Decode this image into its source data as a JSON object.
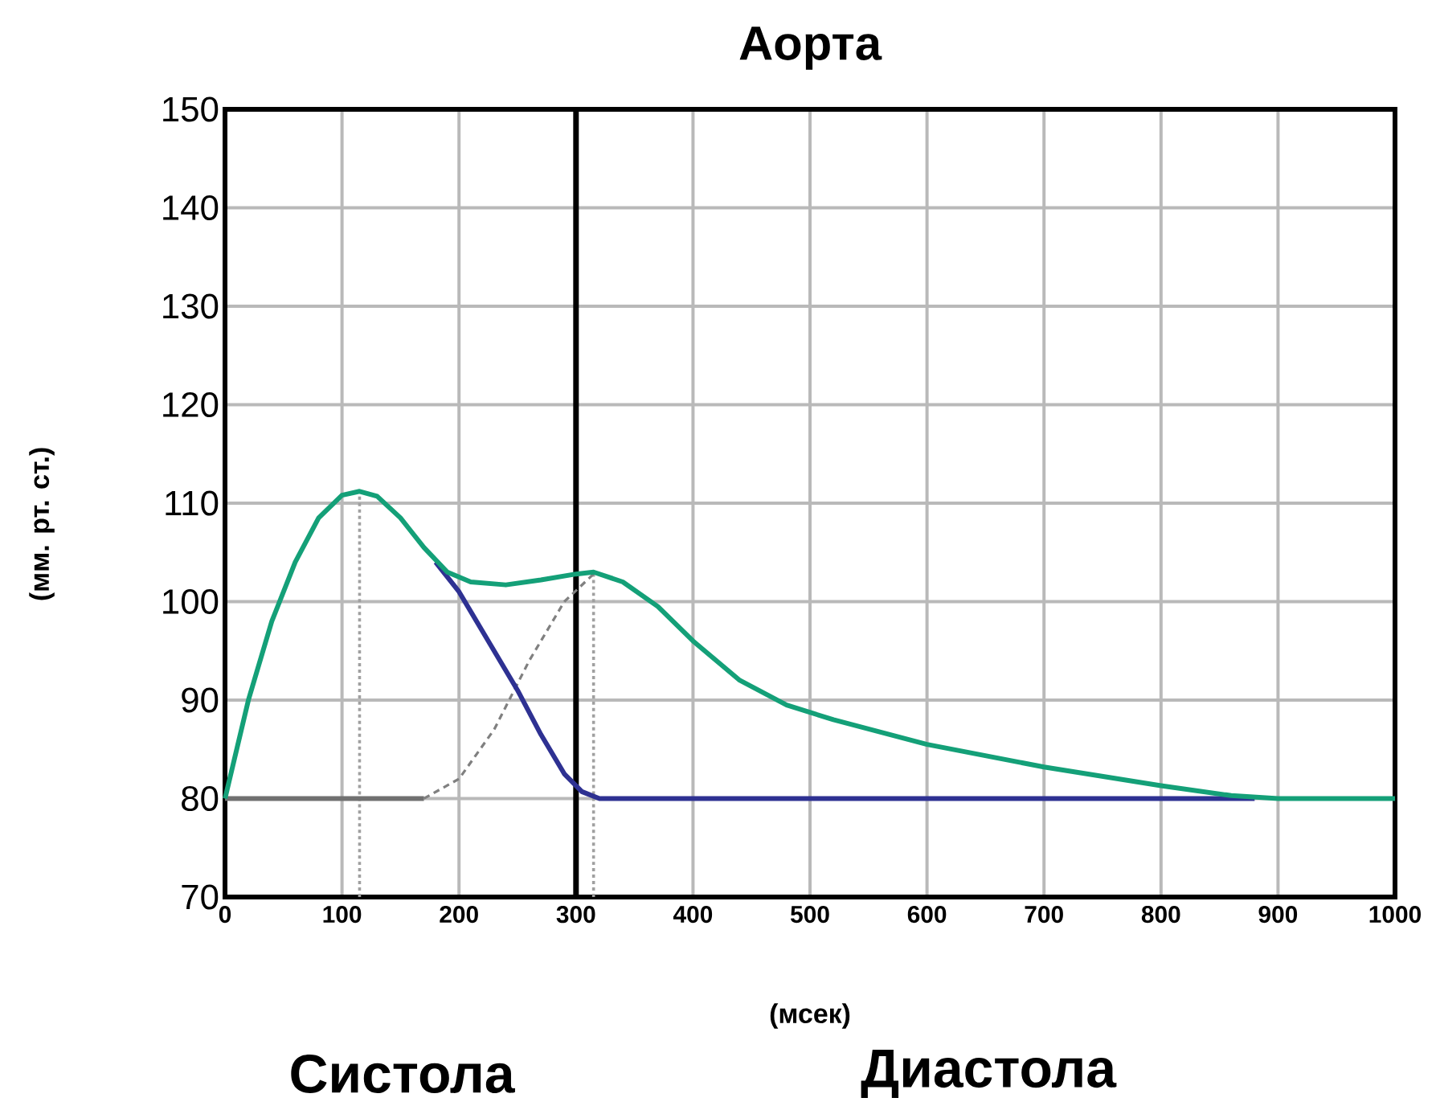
{
  "chart_data": {
    "type": "line",
    "title": "Аорта",
    "xlabel": "(мсек)",
    "ylabel": "(мм. рт. ст.)",
    "annotations": [
      "Систола",
      "Диастола"
    ],
    "xlim": [
      0,
      1000
    ],
    "xticks": [
      0,
      100,
      200,
      300,
      400,
      500,
      600,
      700,
      800,
      900,
      1000
    ],
    "ylim": [
      70,
      150
    ],
    "yticks": [
      70,
      80,
      90,
      100,
      110,
      120,
      130,
      140,
      150
    ],
    "grid": true,
    "ref_lines": [
      {
        "axis": "x",
        "value": 300,
        "color": "#000000",
        "line_style": "solid"
      }
    ],
    "series": [
      {
        "color": "#a0a0a0",
        "line_style": "dotted",
        "x": [
          115,
          115
        ],
        "values": [
          70,
          111
        ]
      },
      {
        "color": "#a0a0a0",
        "line_style": "dotted",
        "x": [
          315,
          315
        ],
        "values": [
          70,
          103
        ]
      },
      {
        "color": "#707070",
        "line_style": "solid",
        "x": [
          0,
          170
        ],
        "values": [
          80,
          80
        ]
      },
      {
        "color": "#808080",
        "line_style": "dashed",
        "x": [
          170,
          200,
          230,
          260,
          290,
          315
        ],
        "values": [
          80,
          82,
          87,
          94,
          100,
          102.8
        ]
      },
      {
        "color": "#2e3192",
        "line_style": "solid",
        "x": [
          180,
          200,
          220,
          250,
          270,
          290,
          305,
          320,
          880
        ],
        "values": [
          104,
          101,
          97,
          91,
          86.5,
          82.5,
          80.7,
          80,
          80
        ]
      },
      {
        "color": "#14a078",
        "line_style": "solid",
        "x": [
          0,
          20,
          40,
          60,
          80,
          100,
          115,
          130,
          150,
          170,
          190,
          210,
          240,
          270,
          300,
          315,
          340,
          370,
          400,
          440,
          480,
          520,
          600,
          700,
          800,
          860,
          900,
          1000
        ],
        "values": [
          80,
          90,
          98,
          104,
          108.5,
          110.8,
          111.2,
          110.7,
          108.5,
          105.5,
          103,
          102,
          101.7,
          102.2,
          102.8,
          103,
          102,
          99.5,
          96,
          92,
          89.5,
          88,
          85.5,
          83.2,
          81.3,
          80.3,
          80,
          80
        ]
      }
    ]
  }
}
